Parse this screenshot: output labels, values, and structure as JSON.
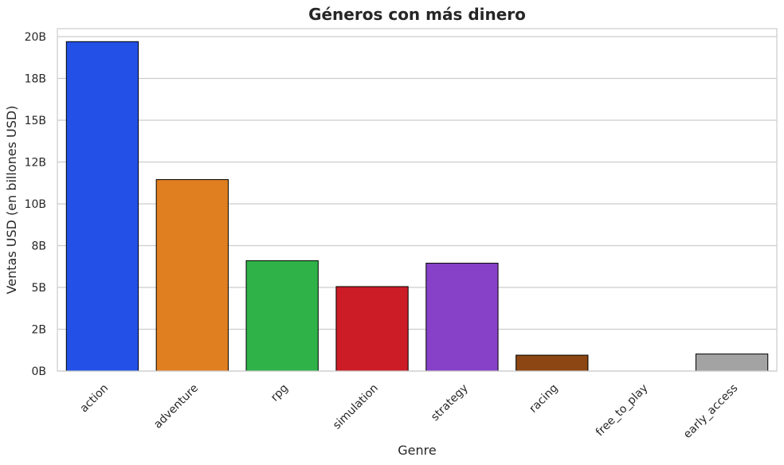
{
  "chart_data": {
    "type": "bar",
    "title": "Géneros con más dinero",
    "xlabel": "Genre",
    "ylabel": "Ventas USD (en billones USD)",
    "categories": [
      "action",
      "adventure",
      "rpg",
      "simulation",
      "strategy",
      "racing",
      "free_to_play",
      "early_access"
    ],
    "values": [
      19.7,
      11.45,
      6.6,
      5.05,
      6.45,
      0.95,
      0.0,
      1.02
    ],
    "ylim": [
      0,
      20
    ],
    "yticks": [
      0,
      2.5,
      5,
      7.5,
      10,
      12.5,
      15,
      17.5,
      20
    ],
    "ytick_labels": [
      "0B",
      "2B",
      "5B",
      "8B",
      "10B",
      "12B",
      "15B",
      "18B",
      "20B"
    ],
    "colors": [
      "#2350e6",
      "#e07f20",
      "#2fb248",
      "#cc1c26",
      "#8741c8",
      "#8b4613",
      "#e6a8d4",
      "#a3a3a3"
    ],
    "grid": "y",
    "legend": "none"
  }
}
